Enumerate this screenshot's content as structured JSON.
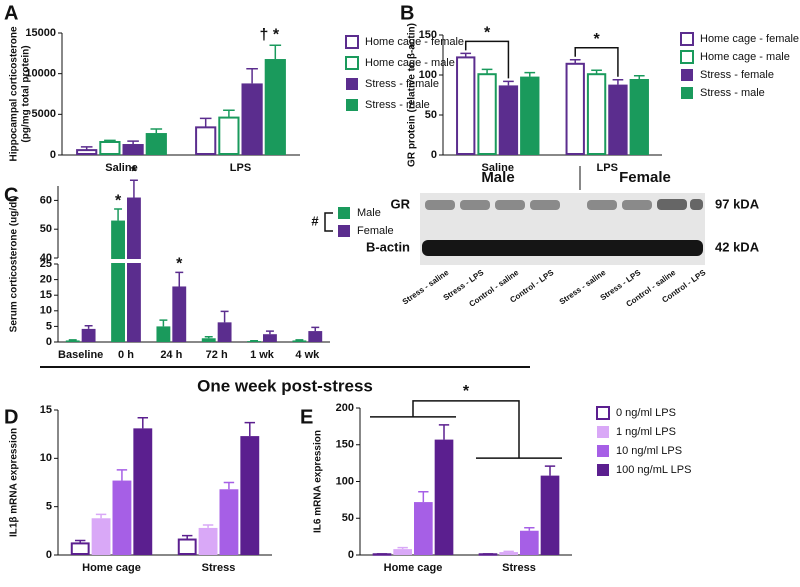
{
  "banner": "One week post-stress",
  "blot": {
    "groups": [
      "Male",
      "Female"
    ],
    "rows": [
      "GR",
      "B-actin"
    ],
    "sizes": [
      "97 kDA",
      "42 kDA"
    ],
    "lanes": [
      "Stress - saline",
      "Stress - LPS",
      "Control - saline",
      "Control - LPS",
      "Stress - saline",
      "Stress - LPS",
      "Control - saline",
      "Control - LPS"
    ]
  },
  "chart_data": [
    {
      "type": "bar",
      "panel": "A",
      "ylabel": [
        "Hippocampal corticosterone",
        "(pg/mg total protein)"
      ],
      "categories": [
        "Saline",
        "LPS"
      ],
      "ylim": [
        0,
        15000
      ],
      "yticks": [
        0,
        5000,
        10000,
        15000
      ],
      "series": [
        {
          "name": "Home cage - female",
          "color": "#5b2d8e",
          "style": "outline",
          "values": [
            600,
            3400
          ],
          "errors": [
            400,
            1100
          ]
        },
        {
          "name": "Home cage - male",
          "color": "#1a9a5c",
          "style": "outline",
          "values": [
            1600,
            4600
          ],
          "errors": [
            200,
            900
          ]
        },
        {
          "name": "Stress - female",
          "color": "#5b2d8e",
          "style": "filled",
          "values": [
            1350,
            8800
          ],
          "errors": [
            350,
            1800
          ]
        },
        {
          "name": "Stress - male",
          "color": "#1a9a5c",
          "style": "filled",
          "values": [
            2700,
            11800
          ],
          "errors": [
            500,
            1700
          ]
        }
      ],
      "annotations": [
        "† *"
      ]
    },
    {
      "type": "bar",
      "panel": "B",
      "ylabel": [
        "GR protein (relative to β-actin)"
      ],
      "categories": [
        "Saline",
        "LPS"
      ],
      "ylim": [
        0,
        150
      ],
      "yticks": [
        0,
        50,
        100,
        150
      ],
      "series": [
        {
          "name": "Home cage - female",
          "color": "#5b2d8e",
          "style": "outline",
          "values": [
            122,
            114
          ],
          "errors": [
            5,
            5
          ]
        },
        {
          "name": "Home cage - male",
          "color": "#1a9a5c",
          "style": "outline",
          "values": [
            101,
            101
          ],
          "errors": [
            6,
            5
          ]
        },
        {
          "name": "Stress - female",
          "color": "#5b2d8e",
          "style": "filled",
          "values": [
            87,
            88
          ],
          "errors": [
            5,
            6
          ]
        },
        {
          "name": "Stress - male",
          "color": "#1a9a5c",
          "style": "filled",
          "values": [
            98,
            95
          ],
          "errors": [
            5,
            4
          ]
        }
      ],
      "annotations": [
        "*",
        "*"
      ]
    },
    {
      "type": "bar",
      "panel": "C",
      "ylabel": [
        "Serum corticosterone (ug/dl)"
      ],
      "categories": [
        "Baseline",
        "0 h",
        "24 h",
        "72 h",
        "1 wk",
        "4 wk"
      ],
      "ylim": [
        0,
        65
      ],
      "ybreak": [
        25,
        40
      ],
      "yticks": [
        0,
        5,
        10,
        15,
        20,
        25,
        40,
        50,
        60
      ],
      "legend_note": "#",
      "series": [
        {
          "name": "Male",
          "color": "#1a9a5c",
          "style": "filled",
          "values": [
            0.5,
            53,
            5,
            1.2,
            0.3,
            0.5
          ],
          "errors": [
            0.2,
            4,
            2,
            0.5,
            0.1,
            0.2
          ]
        },
        {
          "name": "Female",
          "color": "#5b2d8e",
          "style": "filled",
          "values": [
            4.2,
            61,
            17.8,
            6.3,
            2.5,
            3.5
          ],
          "errors": [
            1,
            6,
            4.5,
            3.5,
            1,
            1.2
          ]
        }
      ],
      "annotations": [
        "*",
        "*",
        "*"
      ]
    },
    {
      "type": "bar",
      "panel": "D",
      "ylabel": [
        "IL1β mRNA expression"
      ],
      "categories": [
        "Home cage",
        "Stress"
      ],
      "ylim": [
        0,
        15
      ],
      "yticks": [
        0,
        5,
        10,
        15
      ],
      "series": [
        {
          "color": "#5b1f8f",
          "style": "outline",
          "values": [
            1.2,
            1.6
          ],
          "errors": [
            0.3,
            0.4
          ]
        },
        {
          "color": "#d9a8f7",
          "style": "filled",
          "values": [
            3.8,
            2.8
          ],
          "errors": [
            0.4,
            0.3
          ]
        },
        {
          "color": "#a65fe6",
          "style": "filled",
          "values": [
            7.7,
            6.8
          ],
          "errors": [
            1.1,
            0.7
          ]
        },
        {
          "color": "#5b1f8f",
          "style": "filled",
          "values": [
            13.1,
            12.3
          ],
          "errors": [
            1.1,
            1.4
          ]
        }
      ]
    },
    {
      "type": "bar",
      "panel": "E",
      "ylabel": [
        "IL6 mRNA expression"
      ],
      "categories": [
        "Home cage",
        "Stress"
      ],
      "ylim": [
        0,
        200
      ],
      "yticks": [
        0,
        50,
        100,
        150,
        200
      ],
      "series": [
        {
          "name": "0 ng/ml LPS",
          "color": "#5b1f8f",
          "style": "outline",
          "values": [
            1,
            1
          ],
          "errors": [
            0.5,
            0.5
          ]
        },
        {
          "name": "1 ng/ml LPS",
          "color": "#d9a8f7",
          "style": "filled",
          "values": [
            8,
            4
          ],
          "errors": [
            2,
            1
          ]
        },
        {
          "name": "10 ng/ml LPS",
          "color": "#a65fe6",
          "style": "filled",
          "values": [
            72,
            33
          ],
          "errors": [
            14,
            4
          ]
        },
        {
          "name": "100 ng/mL LPS",
          "color": "#5b1f8f",
          "style": "filled",
          "values": [
            157,
            108
          ],
          "errors": [
            20,
            13
          ]
        }
      ],
      "annotations": [
        "*"
      ]
    }
  ]
}
